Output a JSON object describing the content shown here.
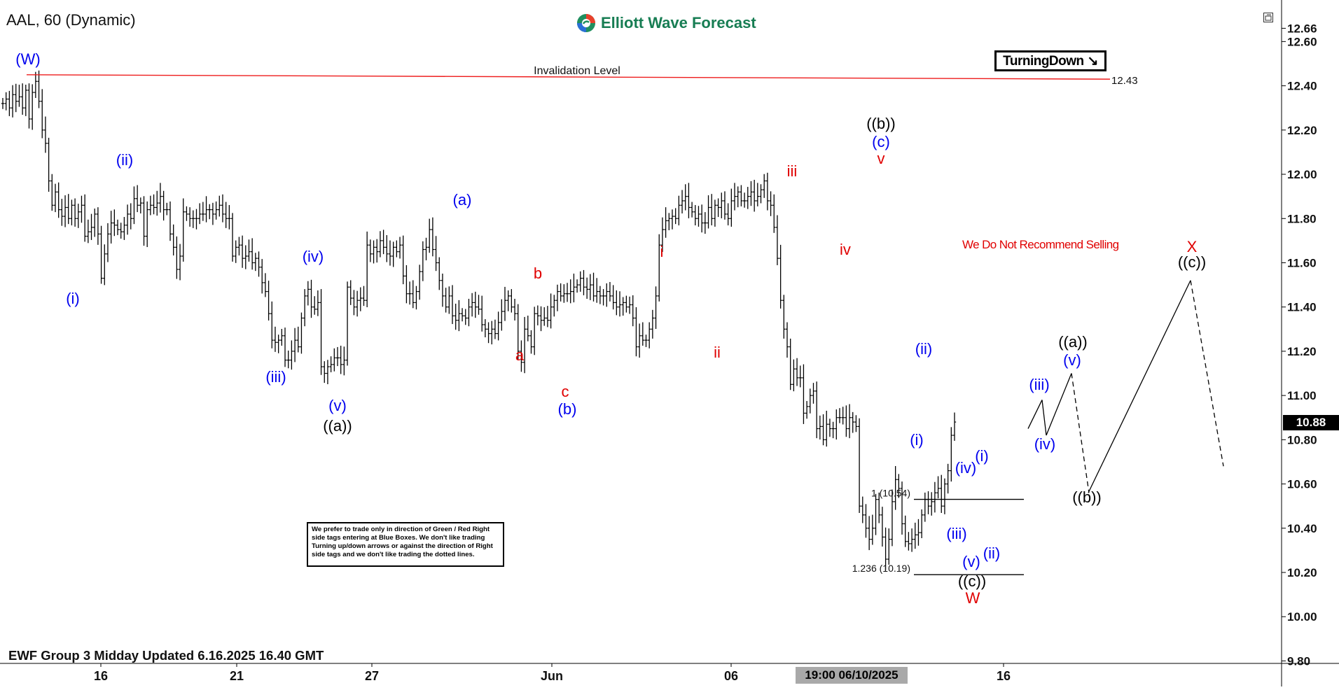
{
  "header": {
    "symbol": "AAL, 60 (Dynamic)",
    "brand": "Elliott Wave Forecast"
  },
  "badge": {
    "label": "TurningDown",
    "icon": "arrow-down-right-icon"
  },
  "footer": {
    "title": "EWF Group 3 Midday Updated 6.16.2025 16.40 GMT",
    "crosshair_datetime": "19:00 06/10/2025"
  },
  "recommendation": "We Do Not Recommend Selling",
  "note": "We prefer to trade only in direction of Green / Red Right side tags entering at Blue Boxes. We don't like trading Turning up/down arrows or against the direction of Right side tags and we don't like trading the dotted lines.",
  "colors": {
    "wave_blue": "#0000ee",
    "wave_red": "#e00000",
    "invalidation_line": "#ee1c1c",
    "brand_green": "#177d53",
    "bars": "#000000"
  },
  "chart_data": {
    "type": "ohlc",
    "current_price": "10.88",
    "y_axis": {
      "ticks": [
        "12.66",
        "12.60",
        "12.40",
        "12.20",
        "12.00",
        "11.80",
        "11.60",
        "11.40",
        "11.20",
        "11.00",
        "10.80",
        "10.60",
        "10.40",
        "10.20",
        "10.00",
        "9.80"
      ],
      "range": [
        9.8,
        12.66
      ]
    },
    "x_axis": {
      "ticks": [
        "16",
        "21",
        "27",
        "Jun",
        "06",
        "16"
      ]
    },
    "invalidation": {
      "label": "Invalidation Level",
      "value": "12.43"
    },
    "fib_levels": [
      {
        "label": "1 (10.54)",
        "value": 10.54
      },
      {
        "label": "1.236 (10.19)",
        "value": 10.19
      }
    ],
    "series_close": [
      12.32,
      12.34,
      12.3,
      12.36,
      12.33,
      12.35,
      12.3,
      12.38,
      12.25,
      12.37,
      12.42,
      12.33,
      12.2,
      12.14,
      11.97,
      11.86,
      11.92,
      11.84,
      11.81,
      11.85,
      11.8,
      11.86,
      11.8,
      11.83,
      11.86,
      11.72,
      11.74,
      11.76,
      11.82,
      11.73,
      11.53,
      11.64,
      11.73,
      11.78,
      11.77,
      11.75,
      11.74,
      11.77,
      11.82,
      11.8,
      11.89,
      11.86,
      11.87,
      11.72,
      11.84,
      11.86,
      11.85,
      11.87,
      11.9,
      11.84,
      11.84,
      11.73,
      11.67,
      11.57,
      11.63,
      11.83,
      11.82,
      11.8,
      11.8,
      11.8,
      11.82,
      11.82,
      11.84,
      11.84,
      11.82,
      11.84,
      11.86,
      11.82,
      11.8,
      11.8,
      11.63,
      11.67,
      11.68,
      11.62,
      11.63,
      11.65,
      11.6,
      11.62,
      11.58,
      11.51,
      11.47,
      11.37,
      11.25,
      11.24,
      11.25,
      11.27,
      11.16,
      11.16,
      11.2,
      11.25,
      11.22,
      11.35,
      11.45,
      11.48,
      11.4,
      11.39,
      11.42,
      11.13,
      11.1,
      11.13,
      11.14,
      11.17,
      11.17,
      11.14,
      11.16,
      11.49,
      11.44,
      11.4,
      11.43,
      11.44,
      11.43,
      11.68,
      11.64,
      11.67,
      11.65,
      11.7,
      11.67,
      11.64,
      11.63,
      11.67,
      11.65,
      11.68,
      11.54,
      11.46,
      11.46,
      11.42,
      11.47,
      11.56,
      11.66,
      11.67,
      11.75,
      11.66,
      11.6,
      11.52,
      11.45,
      11.4,
      11.45,
      11.36,
      11.34,
      11.37,
      11.36,
      11.35,
      11.4,
      11.42,
      11.4,
      11.39,
      11.32,
      11.3,
      11.28,
      11.3,
      11.28,
      11.33,
      11.38,
      11.43,
      11.45,
      11.4,
      11.37,
      11.2,
      11.15,
      11.3,
      11.27,
      11.22,
      11.37,
      11.36,
      11.34,
      11.35,
      11.34,
      11.4,
      11.43,
      11.47,
      11.45,
      11.46,
      11.46,
      11.47,
      11.49,
      11.5,
      11.53,
      11.49,
      11.48,
      11.5,
      11.45,
      11.47,
      11.45,
      11.45,
      11.47,
      11.45,
      11.42,
      11.4,
      11.41,
      11.42,
      11.4,
      11.41,
      11.35,
      11.22,
      11.27,
      11.25,
      11.25,
      11.3,
      11.35,
      11.45,
      11.68,
      11.75,
      11.79,
      11.8,
      11.81,
      11.8,
      11.86,
      11.88,
      11.9,
      11.85,
      11.83,
      11.8,
      11.82,
      11.78,
      11.78,
      11.85,
      11.8,
      11.86,
      11.85,
      11.88,
      11.82,
      11.8,
      11.88,
      11.9,
      11.92,
      11.88,
      11.88,
      11.9,
      11.92,
      11.88,
      11.9,
      11.93,
      11.97,
      11.88,
      11.86,
      11.76,
      11.62,
      11.43,
      11.3,
      11.22,
      11.05,
      11.12,
      11.08,
      11.08,
      10.92,
      10.95,
      11.0,
      11.02,
      10.85,
      10.86,
      10.8,
      10.87,
      10.85,
      10.85,
      10.9,
      10.9,
      10.9,
      10.85,
      10.9,
      10.88,
      10.86,
      10.5,
      10.46,
      10.4,
      10.35,
      10.4,
      10.53,
      10.46,
      10.36,
      10.26,
      10.35,
      10.52,
      10.62,
      10.58,
      10.42,
      10.34,
      10.33,
      10.35,
      10.37,
      10.38,
      10.46,
      10.53,
      10.5,
      10.52,
      10.56,
      10.58,
      10.5,
      10.6,
      10.66,
      10.82,
      10.88
    ],
    "projection": [
      {
        "label": "(iii)",
        "value": 10.98
      },
      {
        "label": "(iv)",
        "value": 10.82
      },
      {
        "label": "(v) ((a))",
        "value": 11.1
      },
      {
        "label": "((b))",
        "value": 10.56
      },
      {
        "label": "((c)) X",
        "value": 11.52
      },
      {
        "label": "",
        "value": 10.68
      }
    ],
    "wave_labels": [
      {
        "text": "(W)",
        "color": "blue",
        "price": 12.52
      },
      {
        "text": "(i)",
        "color": "blue",
        "price": 11.42
      },
      {
        "text": "(ii)",
        "color": "blue",
        "price": 12.05
      },
      {
        "text": "(iii)",
        "color": "blue",
        "price": 11.06
      },
      {
        "text": "(iv)",
        "color": "blue",
        "price": 11.62
      },
      {
        "text": "(v)",
        "color": "blue",
        "price": 10.93
      },
      {
        "text": "((a))",
        "color": "black",
        "price": 10.84
      },
      {
        "text": "(a)",
        "color": "blue",
        "price": 11.88
      },
      {
        "text": "a",
        "color": "red",
        "price": 11.15
      },
      {
        "text": "b",
        "color": "red",
        "price": 11.53
      },
      {
        "text": "c",
        "color": "red",
        "price": 11.0
      },
      {
        "text": "(b)",
        "color": "blue",
        "price": 10.91
      },
      {
        "text": "i",
        "color": "red",
        "price": 11.62
      },
      {
        "text": "ii",
        "color": "red",
        "price": 11.18
      },
      {
        "text": "iii",
        "color": "red",
        "price": 12.0
      },
      {
        "text": "iv",
        "color": "red",
        "price": 11.65
      },
      {
        "text": "v",
        "color": "red",
        "price": 12.05
      },
      {
        "text": "(c)",
        "color": "blue",
        "price": 12.13
      },
      {
        "text": "((b))",
        "color": "black",
        "price": 12.21
      },
      {
        "text": "(i)",
        "color": "blue",
        "price": 10.79
      },
      {
        "text": "(ii)",
        "color": "blue",
        "price": 11.2
      },
      {
        "text": "(iii)",
        "color": "blue",
        "price": 10.36
      },
      {
        "text": "(iv)",
        "color": "blue",
        "price": 10.64
      },
      {
        "text": "(i)",
        "color": "blue",
        "price": 10.68
      },
      {
        "text": "(ii)",
        "color": "blue",
        "price": 10.27
      },
      {
        "text": "(v)",
        "color": "blue",
        "price": 10.19
      },
      {
        "text": "((c))",
        "color": "black",
        "price": 10.12
      },
      {
        "text": "W",
        "color": "red",
        "price": 10.05
      },
      {
        "text": "(iii)",
        "color": "blue",
        "price": 11.03
      },
      {
        "text": "(iv)",
        "color": "blue",
        "price": 10.77
      },
      {
        "text": "(v)",
        "color": "blue",
        "price": 11.15
      },
      {
        "text": "((a))",
        "color": "black",
        "price": 11.21
      },
      {
        "text": "((b))",
        "color": "black",
        "price": 10.52
      },
      {
        "text": "X",
        "color": "red",
        "price": 11.66
      },
      {
        "text": "((c))",
        "color": "black",
        "price": 11.58
      }
    ]
  }
}
